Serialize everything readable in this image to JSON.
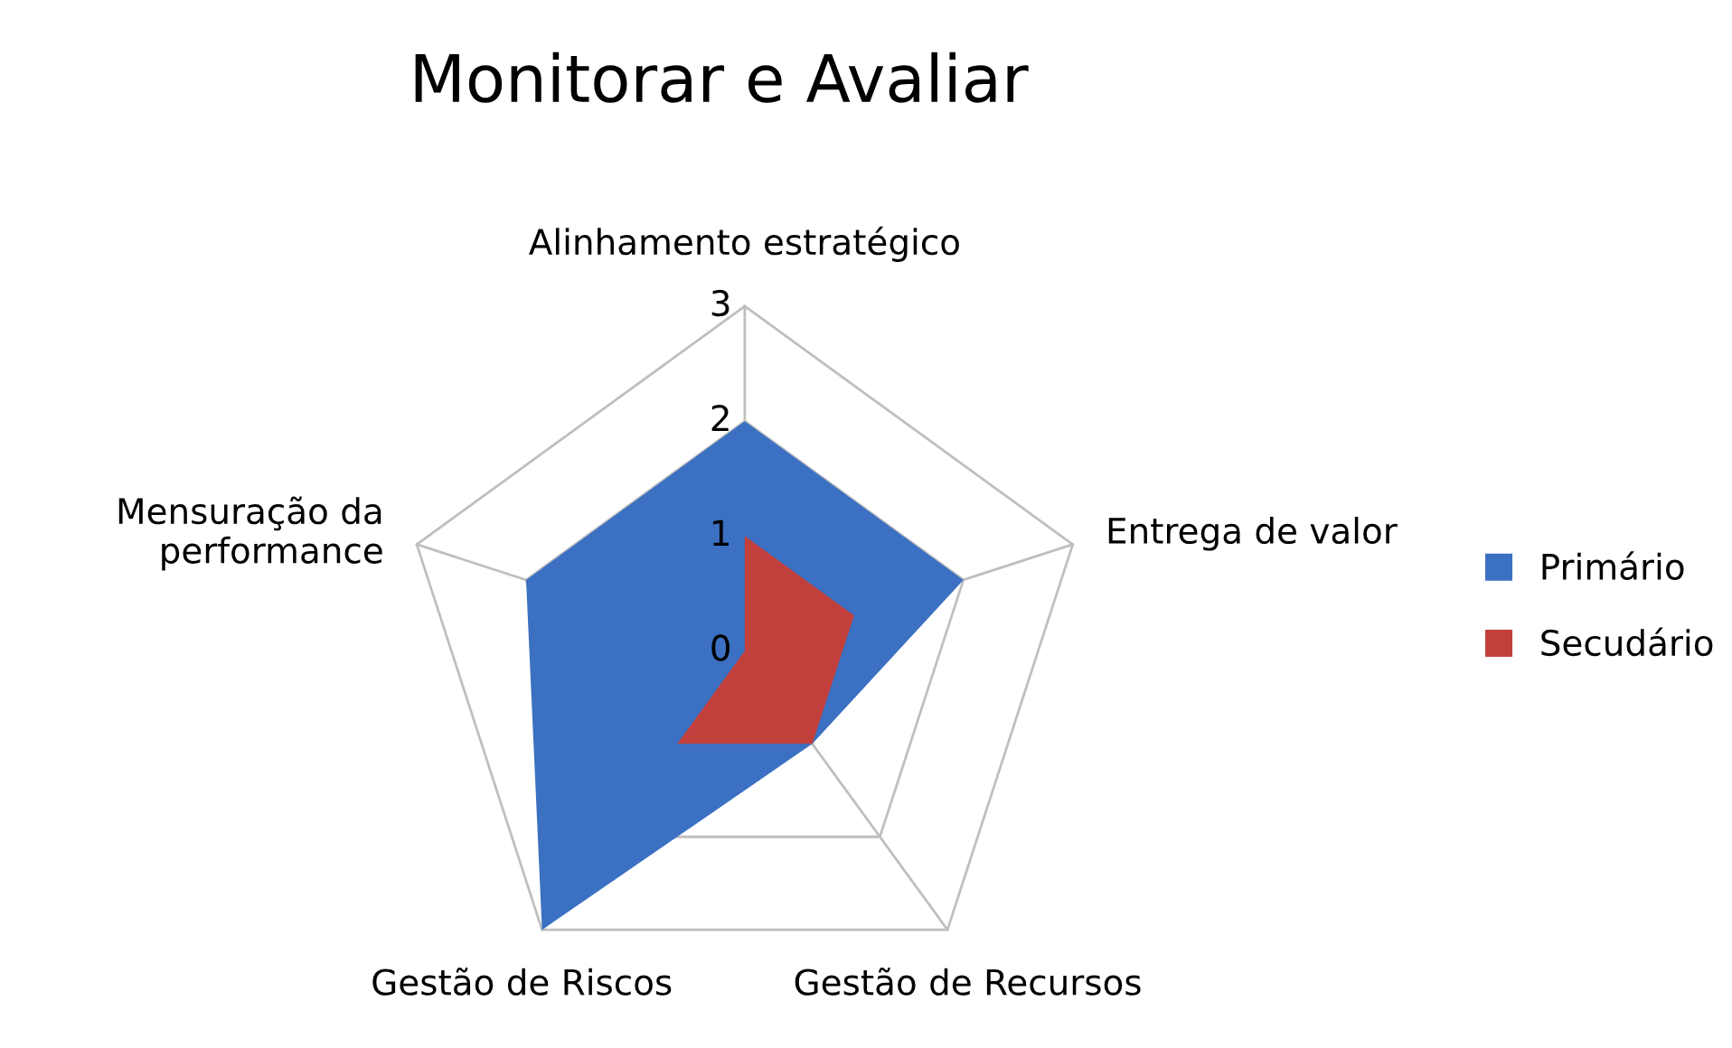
{
  "chart_data": {
    "type": "radar",
    "title": "Monitorar e Avaliar",
    "categories": [
      "Alinhamento estratégico",
      "Entrega de valor",
      "Gestão de Recursos",
      "Gestão de Riscos",
      "Mensuração da performance"
    ],
    "series": [
      {
        "name": "Primário",
        "color": "#3b70c2",
        "values": [
          2,
          2,
          1,
          3,
          2
        ]
      },
      {
        "name": "Secudário",
        "color": "#c2403c",
        "values": [
          1,
          1,
          1,
          1,
          0
        ]
      }
    ],
    "ylim": [
      0,
      3
    ],
    "yticks": [
      0,
      1,
      2,
      3
    ],
    "grid": true,
    "legend": "right"
  }
}
